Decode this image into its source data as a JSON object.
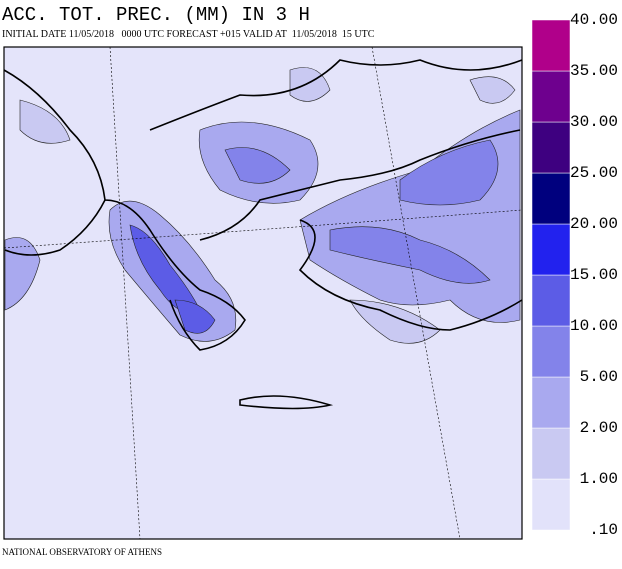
{
  "header": {
    "title": "ACC. TOT. PREC. (MM) IN 3 H",
    "subtitle": "INITIAL DATE 11/05/2018   0000 UTC FORECAST +015 VALID AT  11/05/2018  15 UTC"
  },
  "footer": "NATIONAL OBSERVATORY OF ATHENS",
  "colorbar": {
    "ticks": [
      {
        "value": 0.1,
        "label": ".10"
      },
      {
        "value": 1,
        "label": "1.00"
      },
      {
        "value": 2,
        "label": "2.00"
      },
      {
        "value": 5,
        "label": "5.00"
      },
      {
        "value": 10,
        "label": "10.00"
      },
      {
        "value": 15,
        "label": "15.00"
      },
      {
        "value": 20,
        "label": "20.00"
      },
      {
        "value": 25,
        "label": "25.00"
      },
      {
        "value": 30,
        "label": "30.00"
      },
      {
        "value": 35,
        "label": "35.00"
      },
      {
        "value": 40,
        "label": "40.00"
      }
    ],
    "colors": [
      "#e2e2fa",
      "#c9c9f2",
      "#a9a9ef",
      "#8383ea",
      "#5c5ce6",
      "#2222ee",
      "#00007e",
      "#3e0080",
      "#6e008e",
      "#b0008a"
    ]
  }
}
